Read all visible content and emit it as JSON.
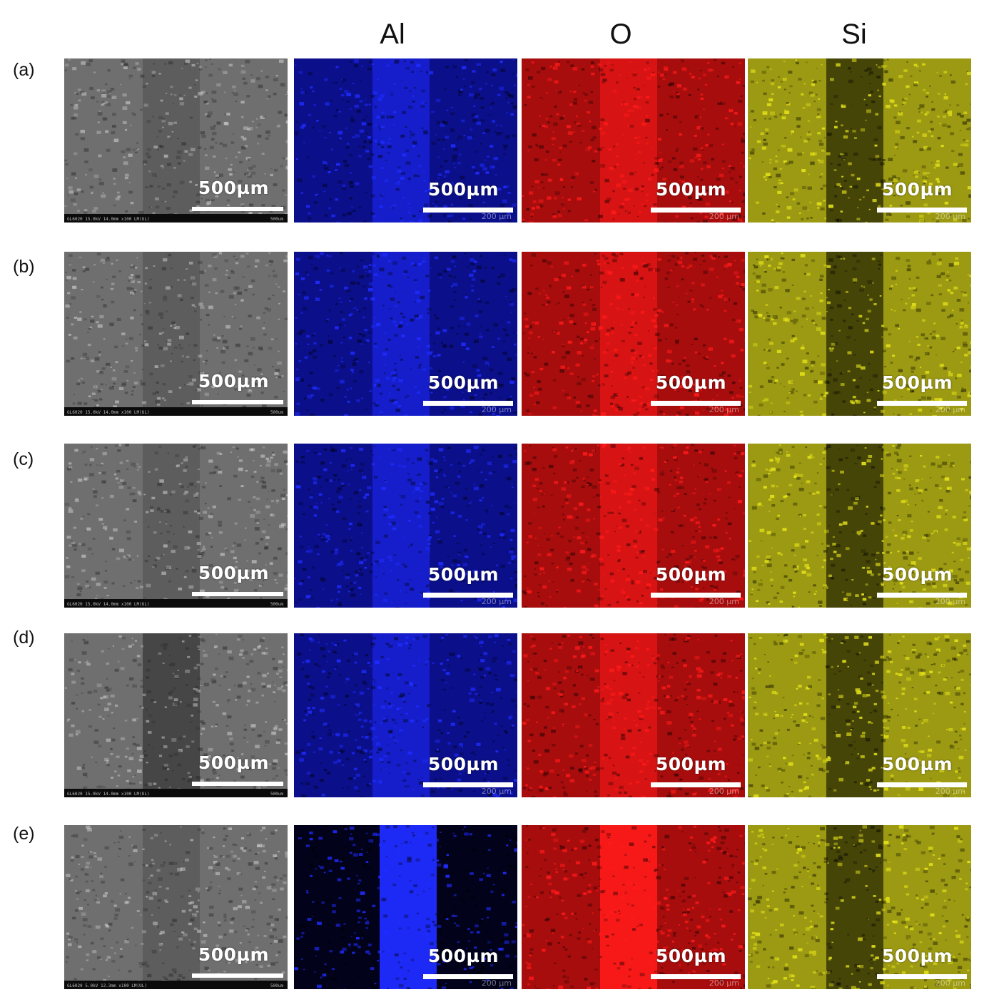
{
  "columns": [
    "Al",
    "O",
    "Si"
  ],
  "rows": [
    {
      "label": "(a)",
      "sem_footer": "GL6020  15.0kV 14.0mm x100 LM(UL)",
      "sem_footer_scale": "500um"
    },
    {
      "label": "(b)",
      "sem_footer": "GL6020  15.0kV 14.0mm x100 LM(UL)",
      "sem_footer_scale": "500um"
    },
    {
      "label": "(c)",
      "sem_footer": "GL6020  15.0kV 14.0mm x100 LM(UL)",
      "sem_footer_scale": "500um"
    },
    {
      "label": "(d)",
      "sem_footer": "GL6020  15.0kV 14.0mm x100 LM(UL)",
      "sem_footer_scale": "500um"
    },
    {
      "label": "(e)",
      "sem_footer": "GL6020  5.0kV 12.3mm x100 LM(UL)",
      "sem_footer_scale": "500um"
    }
  ],
  "scale_label": "500µm",
  "map_ghost_label": "200 µm",
  "colors": {
    "sem": "#8a8a8a",
    "al": "#1f2cff",
    "o": "#ff1a1a",
    "si": "#e6e41a"
  }
}
